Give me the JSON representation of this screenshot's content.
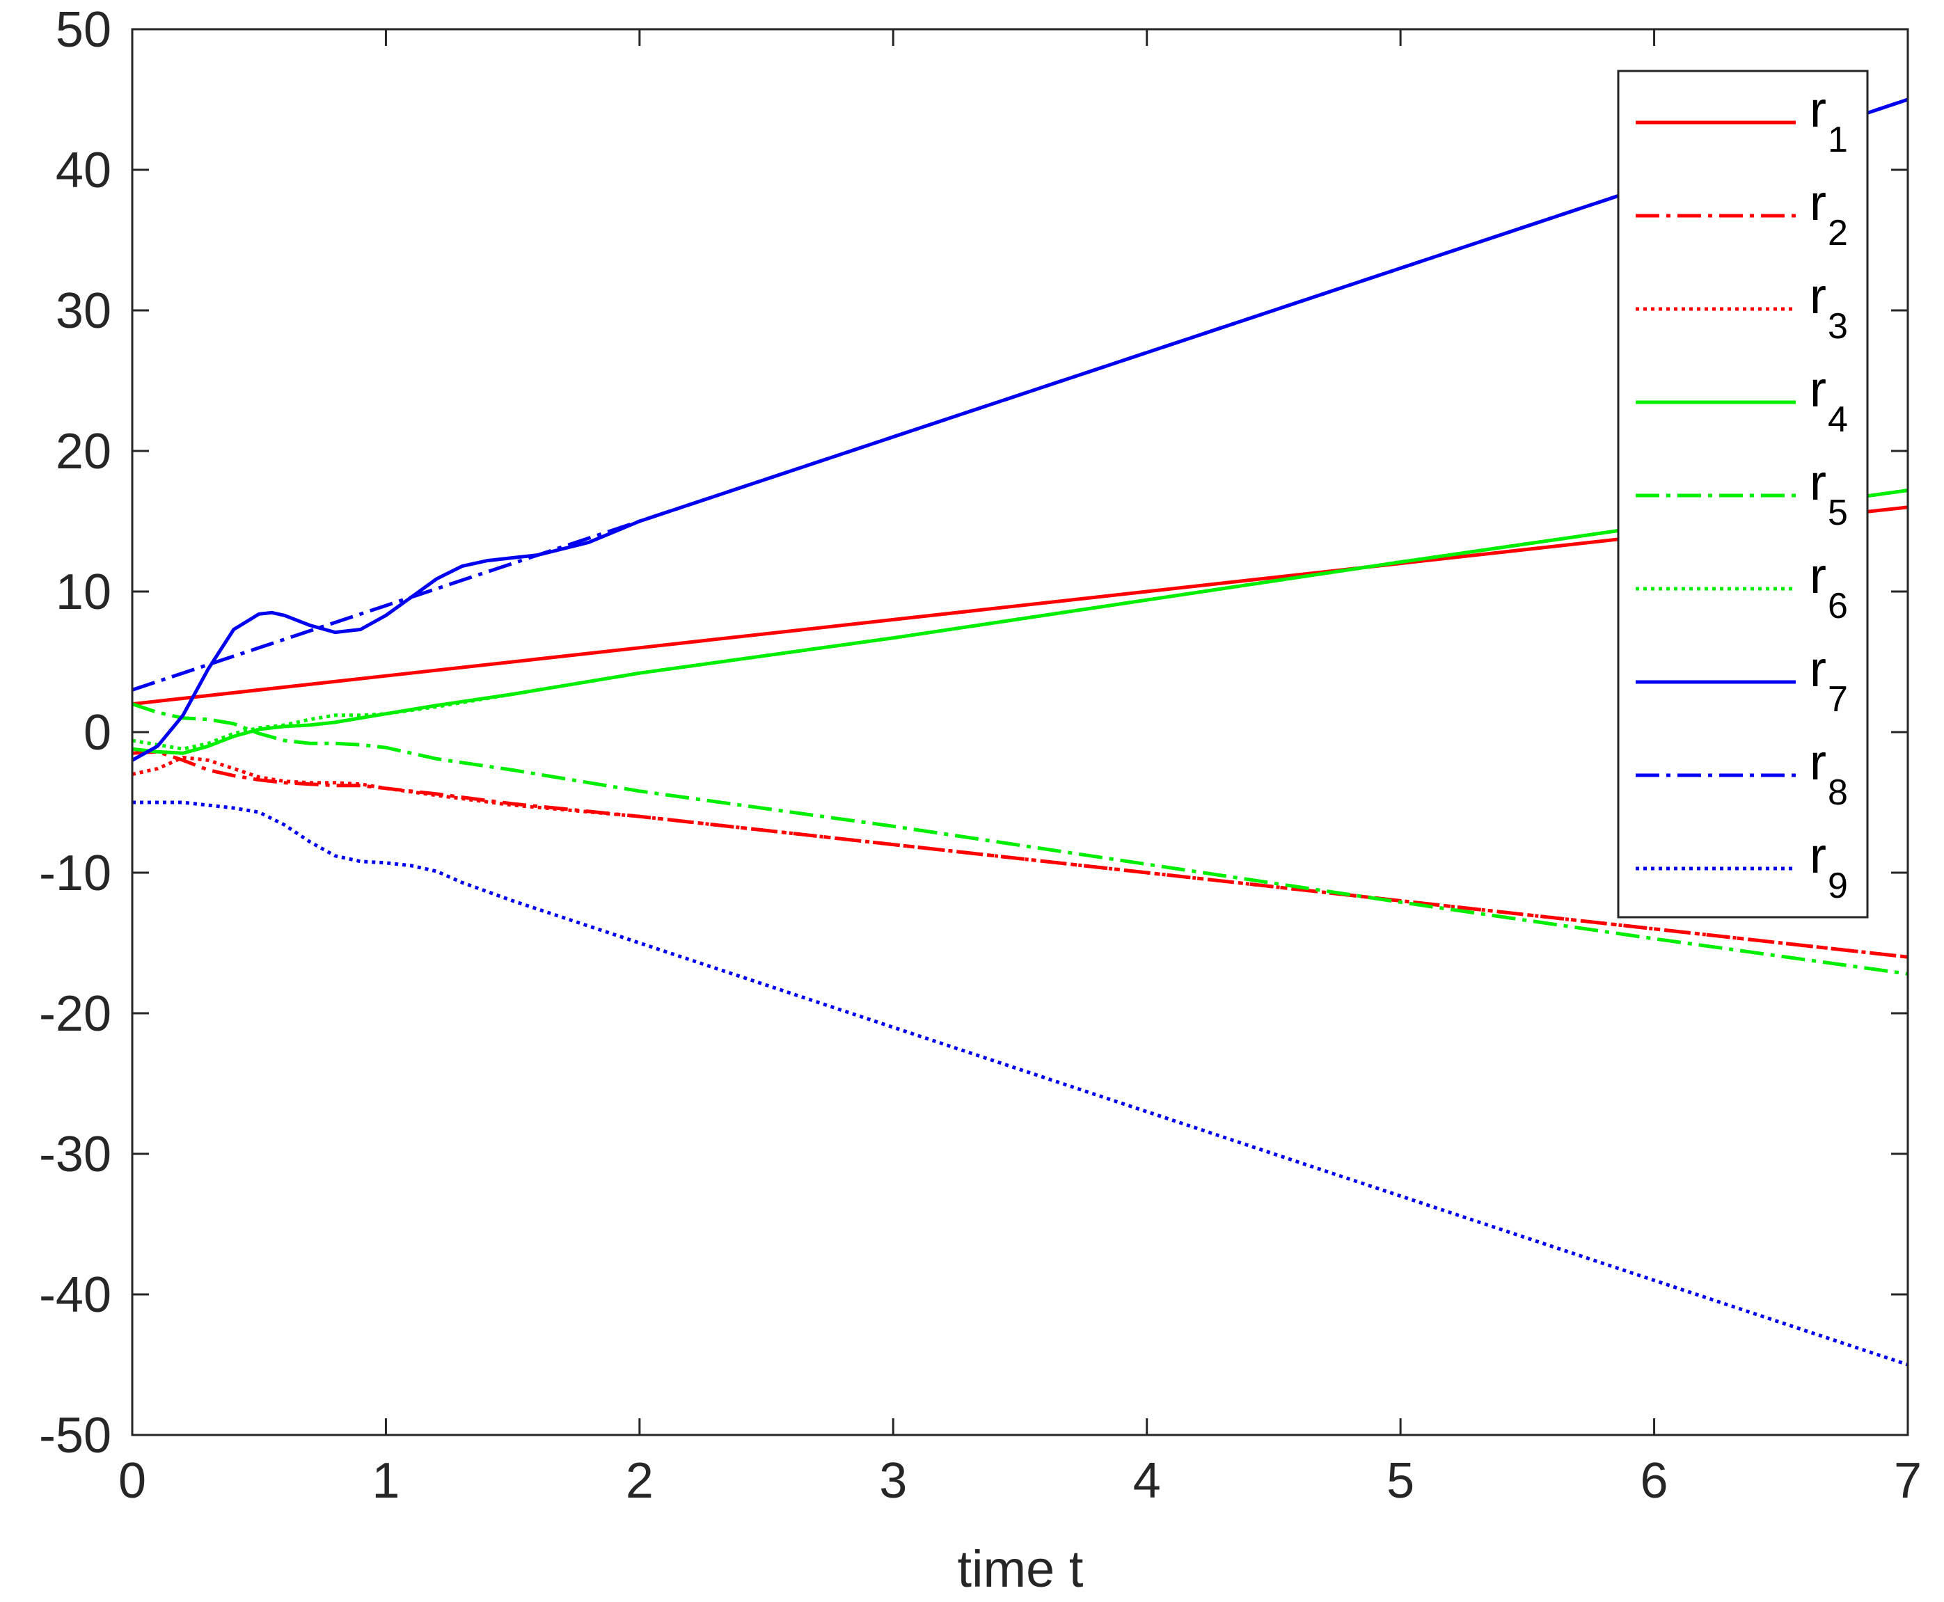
{
  "chart_data": {
    "type": "line",
    "title": "",
    "xlabel": "time t",
    "ylabel": "",
    "xlim": [
      0,
      7
    ],
    "ylim": [
      -50,
      50
    ],
    "xticks": [
      0,
      1,
      2,
      3,
      4,
      5,
      6,
      7
    ],
    "yticks": [
      -50,
      -40,
      -30,
      -20,
      -10,
      0,
      10,
      20,
      30,
      40,
      50
    ],
    "grid": false,
    "legend_position": "top-right",
    "series": [
      {
        "name": "r",
        "sub": "1",
        "color": "#ff0000",
        "style": "solid",
        "x": [
          0,
          1,
          2,
          3,
          4,
          5,
          6,
          7
        ],
        "y": [
          2,
          4,
          6,
          8,
          10,
          12,
          14,
          16
        ]
      },
      {
        "name": "r",
        "sub": "2",
        "color": "#ff0000",
        "style": "dashdot",
        "x": [
          0,
          0.1,
          0.2,
          0.3,
          0.4,
          0.5,
          0.6,
          0.7,
          0.8,
          0.9,
          1.0,
          1.2,
          1.5,
          2,
          3,
          4,
          5,
          6,
          7
        ],
        "y": [
          -1.5,
          -1.4,
          -2.0,
          -2.7,
          -3.1,
          -3.4,
          -3.6,
          -3.7,
          -3.8,
          -3.8,
          -4.0,
          -4.4,
          -5.1,
          -6,
          -8,
          -10,
          -12,
          -14,
          -16
        ]
      },
      {
        "name": "r",
        "sub": "3",
        "color": "#ff0000",
        "style": "dotted",
        "x": [
          0,
          0.1,
          0.2,
          0.3,
          0.4,
          0.5,
          0.6,
          0.7,
          0.8,
          0.9,
          1.0,
          1.2,
          1.5,
          2,
          3,
          4,
          5,
          6,
          7
        ],
        "y": [
          -3.0,
          -2.6,
          -1.8,
          -2.0,
          -2.6,
          -3.2,
          -3.5,
          -3.6,
          -3.6,
          -3.7,
          -4.0,
          -4.5,
          -5.2,
          -6,
          -8,
          -10,
          -12,
          -14,
          -16
        ]
      },
      {
        "name": "r",
        "sub": "4",
        "color": "#00ee00",
        "style": "solid",
        "x": [
          0,
          0.1,
          0.2,
          0.3,
          0.4,
          0.5,
          0.6,
          0.7,
          0.8,
          1.0,
          1.2,
          1.5,
          2,
          3,
          4,
          5,
          6,
          7
        ],
        "y": [
          -1.2,
          -1.4,
          -1.5,
          -1.0,
          -0.3,
          0.2,
          0.4,
          0.5,
          0.7,
          1.3,
          1.9,
          2.7,
          4.2,
          6.7,
          9.4,
          12.1,
          14.7,
          17.2
        ]
      },
      {
        "name": "r",
        "sub": "5",
        "color": "#00ee00",
        "style": "dashdot",
        "x": [
          0,
          0.1,
          0.2,
          0.3,
          0.4,
          0.5,
          0.6,
          0.7,
          0.8,
          0.9,
          1.0,
          1.2,
          1.5,
          2,
          3,
          4,
          5,
          6,
          7
        ],
        "y": [
          2.0,
          1.4,
          1.0,
          0.9,
          0.6,
          -0.1,
          -0.6,
          -0.8,
          -0.8,
          -0.9,
          -1.1,
          -1.9,
          -2.7,
          -4.2,
          -6.7,
          -9.4,
          -12.1,
          -14.7,
          -17.2
        ]
      },
      {
        "name": "r",
        "sub": "6",
        "color": "#00ee00",
        "style": "dotted",
        "x": [
          0,
          0.1,
          0.2,
          0.3,
          0.4,
          0.5,
          0.6,
          0.7,
          0.8,
          0.9,
          1.0,
          1.2,
          1.5,
          2,
          3,
          4,
          5,
          6,
          7
        ],
        "y": [
          -0.6,
          -0.9,
          -1.2,
          -0.8,
          -0.1,
          0.3,
          0.5,
          0.9,
          1.2,
          1.2,
          1.3,
          1.8,
          2.7,
          4.2,
          6.7,
          9.4,
          12.1,
          14.7,
          17.2
        ]
      },
      {
        "name": "r",
        "sub": "7",
        "color": "#0000ee",
        "style": "solid",
        "x": [
          0,
          0.1,
          0.2,
          0.3,
          0.4,
          0.5,
          0.55,
          0.6,
          0.7,
          0.8,
          0.9,
          1.0,
          1.1,
          1.2,
          1.3,
          1.4,
          1.5,
          1.6,
          1.8,
          2,
          3,
          4,
          5,
          6,
          7
        ],
        "y": [
          -2.0,
          -1.0,
          1.2,
          4.5,
          7.3,
          8.4,
          8.5,
          8.3,
          7.6,
          7.1,
          7.3,
          8.3,
          9.6,
          10.9,
          11.8,
          12.2,
          12.4,
          12.6,
          13.5,
          15.0,
          21.0,
          27.0,
          33.0,
          39.0,
          45.0
        ]
      },
      {
        "name": "r",
        "sub": "8",
        "color": "#0000ee",
        "style": "dashdot",
        "x": [
          0,
          0.5,
          1.0,
          1.5,
          2,
          3,
          4,
          5,
          6,
          7
        ],
        "y": [
          3.0,
          6.0,
          9.0,
          12.0,
          15.0,
          21.0,
          27.0,
          33.0,
          39.0,
          45.0
        ]
      },
      {
        "name": "r",
        "sub": "9",
        "color": "#0000ee",
        "style": "dotted",
        "x": [
          0,
          0.2,
          0.4,
          0.5,
          0.6,
          0.7,
          0.8,
          0.9,
          1.0,
          1.1,
          1.2,
          1.3,
          1.5,
          2,
          3,
          4,
          5,
          6,
          7
        ],
        "y": [
          -5.0,
          -5.0,
          -5.4,
          -5.7,
          -6.6,
          -7.8,
          -8.8,
          -9.2,
          -9.3,
          -9.5,
          -9.9,
          -10.7,
          -12.0,
          -15.0,
          -21.0,
          -27.0,
          -33.0,
          -39.0,
          -45.0
        ]
      }
    ]
  }
}
